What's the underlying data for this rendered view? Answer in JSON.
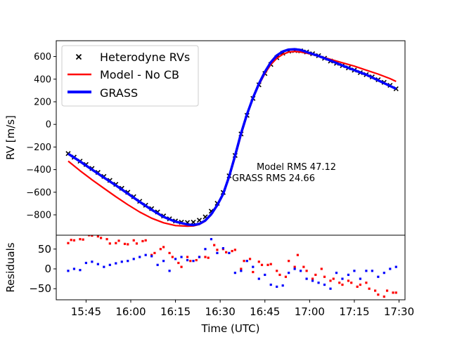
{
  "chart_data": [
    {
      "type": "line",
      "ylabel": "RV [m/s]",
      "ylim": [
        -980,
        740
      ],
      "xlim": [
        "15:35",
        "17:32"
      ],
      "yticks": [
        600,
        400,
        200,
        0,
        -200,
        -400,
        -600,
        -800
      ],
      "legend": {
        "placement": "top-left",
        "entries": [
          "Heterodyne RVs",
          "Model - No CB",
          "GRASS"
        ]
      },
      "annotations": [
        "Model RMS 47.12",
        "GRASS RMS 24.66"
      ],
      "series": [
        {
          "name": "Heterodyne RVs",
          "style": "scatter-x",
          "color": "#000000",
          "x": [
            "15:39",
            "15:41",
            "15:43",
            "15:45",
            "15:47",
            "15:49",
            "15:51",
            "15:53",
            "15:55",
            "15:57",
            "15:59",
            "16:01",
            "16:03",
            "16:05",
            "16:07",
            "16:09",
            "16:11",
            "16:13",
            "16:15",
            "16:17",
            "16:19",
            "16:21",
            "16:23",
            "16:25",
            "16:27",
            "16:29",
            "16:31",
            "16:33",
            "16:35",
            "16:37",
            "16:39",
            "16:41",
            "16:43",
            "16:45",
            "16:47",
            "16:49",
            "16:51",
            "16:53",
            "16:55",
            "16:57",
            "16:59",
            "17:01",
            "17:03",
            "17:05",
            "17:07",
            "17:09",
            "17:11",
            "17:13",
            "17:15",
            "17:17",
            "17:19",
            "17:21",
            "17:23",
            "17:25",
            "17:27",
            "17:29"
          ],
          "y": [
            -258,
            -290,
            -325,
            -355,
            -390,
            -425,
            -460,
            -495,
            -530,
            -565,
            -600,
            -640,
            -680,
            -715,
            -745,
            -775,
            -810,
            -835,
            -855,
            -865,
            -868,
            -865,
            -848,
            -818,
            -768,
            -698,
            -602,
            -455,
            -275,
            -85,
            80,
            230,
            350,
            450,
            530,
            590,
            630,
            648,
            653,
            650,
            640,
            625,
            608,
            585,
            560,
            540,
            520,
            500,
            480,
            458,
            440,
            420,
            395,
            372,
            345,
            315
          ]
        },
        {
          "name": "Model - No CB",
          "style": "line",
          "color": "#ff0000",
          "x": [
            "15:39",
            "15:43",
            "15:47",
            "15:51",
            "15:55",
            "15:59",
            "16:03",
            "16:07",
            "16:11",
            "16:15",
            "16:19",
            "16:21",
            "16:23",
            "16:25",
            "16:27",
            "16:29",
            "16:31",
            "16:33",
            "16:35",
            "16:37",
            "16:39",
            "16:41",
            "16:43",
            "16:45",
            "16:47",
            "16:49",
            "16:51",
            "16:53",
            "16:55",
            "16:57",
            "16:59",
            "17:03",
            "17:07",
            "17:11",
            "17:15",
            "17:19",
            "17:23",
            "17:27",
            "17:29"
          ],
          "y": [
            -325,
            -410,
            -490,
            -565,
            -640,
            -710,
            -775,
            -830,
            -870,
            -895,
            -900,
            -898,
            -885,
            -855,
            -800,
            -720,
            -620,
            -470,
            -290,
            -95,
            80,
            230,
            350,
            450,
            530,
            585,
            620,
            640,
            645,
            640,
            630,
            605,
            575,
            545,
            515,
            480,
            445,
            405,
            380
          ]
        },
        {
          "name": "GRASS",
          "style": "line",
          "color": "#0000ff",
          "x": [
            "15:39",
            "15:43",
            "15:47",
            "15:51",
            "15:55",
            "15:59",
            "16:03",
            "16:07",
            "16:11",
            "16:15",
            "16:19",
            "16:21",
            "16:23",
            "16:25",
            "16:27",
            "16:29",
            "16:31",
            "16:33",
            "16:35",
            "16:37",
            "16:39",
            "16:41",
            "16:43",
            "16:45",
            "16:47",
            "16:49",
            "16:51",
            "16:53",
            "16:55",
            "16:57",
            "16:59",
            "17:03",
            "17:07",
            "17:11",
            "17:15",
            "17:19",
            "17:23",
            "17:27",
            "17:29"
          ],
          "y": [
            -260,
            -328,
            -400,
            -470,
            -540,
            -612,
            -685,
            -755,
            -818,
            -860,
            -885,
            -890,
            -880,
            -850,
            -795,
            -715,
            -615,
            -460,
            -275,
            -80,
            90,
            235,
            360,
            465,
            550,
            610,
            645,
            662,
            665,
            658,
            640,
            605,
            565,
            520,
            480,
            440,
            390,
            340,
            315
          ]
        }
      ]
    },
    {
      "type": "scatter",
      "ylabel": "Residuals",
      "xlabel": "Time (UTC)",
      "ylim": [
        -78,
        85
      ],
      "yticks": [
        50,
        0,
        -50
      ],
      "xticks": [
        "15:45",
        "16:00",
        "16:15",
        "16:30",
        "16:45",
        "17:00",
        "17:15",
        "17:30"
      ],
      "series": [
        {
          "name": "Model - No CB",
          "color": "#ff0000",
          "x": [
            "15:39",
            "15:40",
            "15:41",
            "15:43",
            "15:44",
            "15:46",
            "15:47",
            "15:49",
            "15:50",
            "15:52",
            "15:53",
            "15:55",
            "15:56",
            "15:58",
            "15:59",
            "16:01",
            "16:02",
            "16:04",
            "16:05",
            "16:07",
            "16:08",
            "16:10",
            "16:11",
            "16:13",
            "16:14",
            "16:16",
            "16:17",
            "16:19",
            "16:20",
            "16:22",
            "16:23",
            "16:25",
            "16:26",
            "16:28",
            "16:29",
            "16:31",
            "16:32",
            "16:34",
            "16:35",
            "16:37",
            "16:38",
            "16:40",
            "16:41",
            "16:43",
            "16:44",
            "16:46",
            "16:47",
            "16:49",
            "16:50",
            "16:52",
            "16:53",
            "16:55",
            "16:56",
            "16:58",
            "16:59",
            "17:01",
            "17:02",
            "17:04",
            "17:05",
            "17:07",
            "17:08",
            "17:10",
            "17:11",
            "17:13",
            "17:14",
            "17:16",
            "17:17",
            "17:19",
            "17:20",
            "17:22",
            "17:23",
            "17:25",
            "17:26",
            "17:28",
            "17:29"
          ],
          "y": [
            65,
            73,
            72,
            75,
            74,
            85,
            84,
            82,
            78,
            75,
            64,
            65,
            71,
            63,
            62,
            72,
            64,
            70,
            72,
            35,
            40,
            50,
            55,
            40,
            30,
            15,
            5,
            30,
            20,
            22,
            30,
            30,
            28,
            60,
            48,
            50,
            42,
            45,
            48,
            0,
            20,
            25,
            -8,
            18,
            10,
            10,
            12,
            -5,
            -15,
            -20,
            20,
            5,
            35,
            5,
            -5,
            -25,
            -15,
            0,
            -20,
            -30,
            -25,
            -35,
            -40,
            -30,
            -35,
            -45,
            -40,
            -35,
            -50,
            -55,
            -65,
            -70,
            -55,
            -60,
            -60
          ]
        },
        {
          "name": "GRASS",
          "color": "#0000ff",
          "x": [
            "15:39",
            "15:41",
            "15:43",
            "15:45",
            "15:47",
            "15:49",
            "15:51",
            "15:53",
            "15:55",
            "15:57",
            "15:59",
            "16:01",
            "16:03",
            "16:05",
            "16:07",
            "16:09",
            "16:11",
            "16:13",
            "16:15",
            "16:17",
            "16:19",
            "16:21",
            "16:23",
            "16:25",
            "16:27",
            "16:29",
            "16:31",
            "16:33",
            "16:35",
            "16:37",
            "16:39",
            "16:41",
            "16:43",
            "16:45",
            "16:47",
            "16:49",
            "16:51",
            "16:53",
            "16:55",
            "16:57",
            "16:59",
            "17:01",
            "17:03",
            "17:05",
            "17:07",
            "17:09",
            "17:11",
            "17:13",
            "17:15",
            "17:17",
            "17:19",
            "17:21",
            "17:23",
            "17:25",
            "17:27",
            "17:29"
          ],
          "y": [
            -5,
            0,
            -3,
            15,
            18,
            12,
            5,
            10,
            14,
            18,
            20,
            25,
            30,
            35,
            32,
            10,
            20,
            -5,
            25,
            30,
            22,
            20,
            30,
            50,
            75,
            40,
            52,
            40,
            -10,
            -5,
            20,
            5,
            -25,
            -15,
            -40,
            -45,
            -42,
            -10,
            0,
            -5,
            -25,
            -30,
            -35,
            -40,
            -50,
            -10,
            -25,
            -15,
            -5,
            -25,
            -5,
            -5,
            -20,
            -10,
            0,
            5
          ]
        }
      ]
    }
  ]
}
